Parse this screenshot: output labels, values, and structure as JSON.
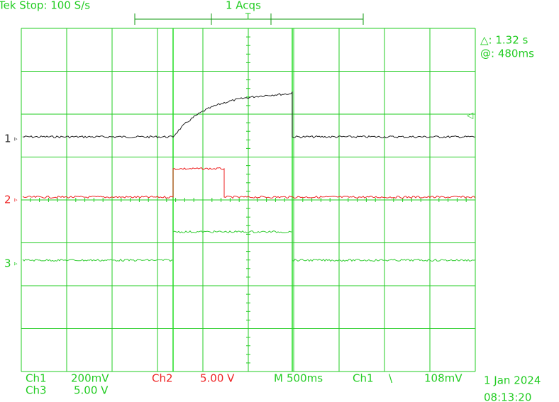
{
  "header": {
    "status": "Tek Stop: 100 S/s",
    "acquisitions": "1 Acqs",
    "trigger_marker": "T"
  },
  "cursor": {
    "delta": "△: 1.32 s",
    "position": "@: 480ms"
  },
  "channels": [
    {
      "marker": "1",
      "label": "Ch1",
      "scale": "200mV"
    },
    {
      "marker": "2",
      "label": "Ch2",
      "scale": "5.00 V"
    },
    {
      "marker": "3",
      "label": "Ch3",
      "scale": "5.00 V"
    }
  ],
  "timebase": {
    "label": "M",
    "scale": "500ms"
  },
  "trigger": {
    "source": "Ch1",
    "slope": "\\",
    "level": "108mV"
  },
  "timestamp": {
    "date": "1 Jan 2024",
    "time": "08:13:20"
  }
}
